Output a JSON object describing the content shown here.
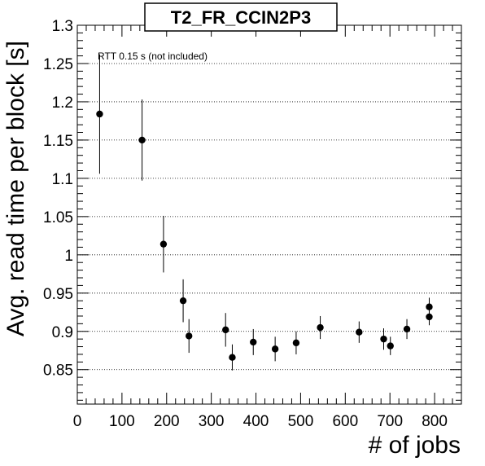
{
  "chart_data": {
    "type": "scatter",
    "title": "T2_FR_CCIN2P3",
    "xlabel": "# of jobs",
    "ylabel": "Avg. read time per block [s]",
    "annotation": "RTT 0.15 s (not included)",
    "xlim": [
      0,
      860
    ],
    "ylim": [
      0.805,
      1.3
    ],
    "xticks": [
      0,
      100,
      200,
      300,
      400,
      500,
      600,
      700,
      800
    ],
    "yticks": [
      0.85,
      0.9,
      0.95,
      1,
      1.05,
      1.1,
      1.15,
      1.2,
      1.25,
      1.3
    ],
    "xtick_labels": [
      "0",
      "100",
      "200",
      "300",
      "400",
      "500",
      "600",
      "700",
      "800"
    ],
    "ytick_labels": [
      "0.85",
      "0.9",
      "0.95",
      "1",
      "1.05",
      "1.1",
      "1.15",
      "1.2",
      "1.25",
      "1.3"
    ],
    "grid": "horizontal-dotted",
    "marker_color": "#000000",
    "points": [
      {
        "x": 50,
        "y": 1.184,
        "err": 0.078
      },
      {
        "x": 145,
        "y": 1.15,
        "err": 0.053
      },
      {
        "x": 193,
        "y": 1.014,
        "err": 0.037
      },
      {
        "x": 237,
        "y": 0.94,
        "err": 0.028
      },
      {
        "x": 250,
        "y": 0.894,
        "err": 0.022
      },
      {
        "x": 332,
        "y": 0.902,
        "err": 0.022
      },
      {
        "x": 347,
        "y": 0.866,
        "err": 0.017
      },
      {
        "x": 394,
        "y": 0.886,
        "err": 0.017
      },
      {
        "x": 443,
        "y": 0.877,
        "err": 0.016
      },
      {
        "x": 490,
        "y": 0.885,
        "err": 0.015
      },
      {
        "x": 544,
        "y": 0.905,
        "err": 0.015
      },
      {
        "x": 631,
        "y": 0.899,
        "err": 0.014
      },
      {
        "x": 686,
        "y": 0.89,
        "err": 0.014
      },
      {
        "x": 701,
        "y": 0.881,
        "err": 0.012
      },
      {
        "x": 738,
        "y": 0.903,
        "err": 0.013
      },
      {
        "x": 788,
        "y": 0.932,
        "err": 0.012
      },
      {
        "x": 788,
        "y": 0.919,
        "err": 0.011
      }
    ]
  }
}
